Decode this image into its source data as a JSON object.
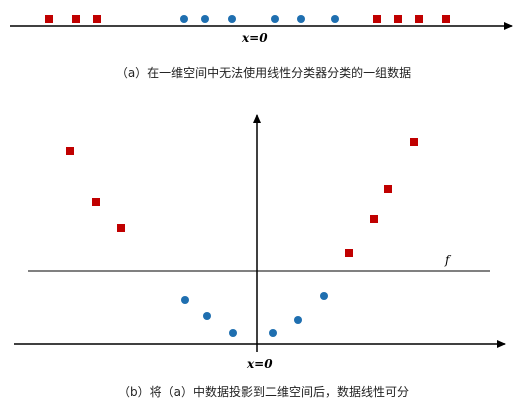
{
  "panel_a": {
    "caption": "（a）在一维空间中无法使用线性分类器分类的一组数据",
    "axis_label": "x=0"
  },
  "panel_b": {
    "caption": "（b）将（a）中数据投影到二维空间后，数据线性可分",
    "axis_label": "x=0",
    "line_label": "f"
  },
  "colors": {
    "class_square": "#c00000",
    "class_circle": "#1f6fb0",
    "axis": "#000000"
  },
  "legend_shapes": {
    "class_square": "square",
    "class_circle": "circle"
  }
}
